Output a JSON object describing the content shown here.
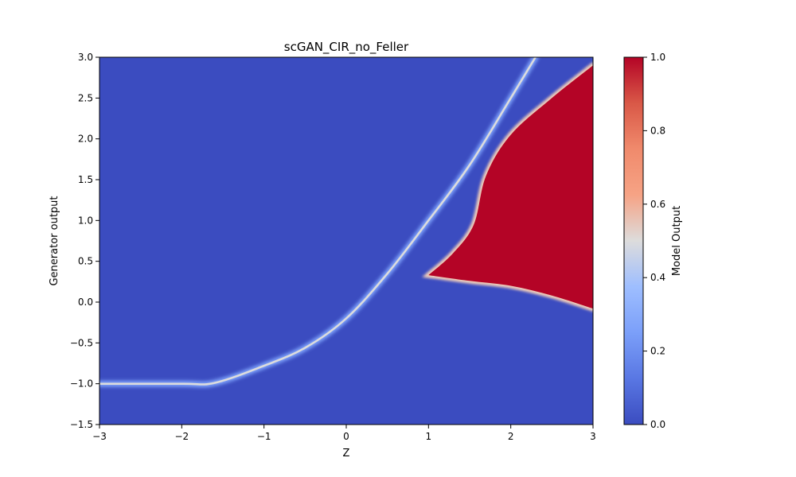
{
  "chart_data": {
    "type": "heatmap",
    "title": "scGAN_CIR_no_Feller",
    "xlabel": "Z",
    "ylabel": "Generator output",
    "xlim": [
      -3,
      3
    ],
    "ylim": [
      -1.5,
      3
    ],
    "x_ticks": [
      -3,
      -2,
      -1,
      0,
      1,
      2,
      3
    ],
    "x_tick_labels": [
      "−3",
      "−2",
      "−1",
      "0",
      "1",
      "2",
      "3"
    ],
    "y_ticks": [
      -1.5,
      -1.0,
      -0.5,
      0.0,
      0.5,
      1.0,
      1.5,
      2.0,
      2.5,
      3.0
    ],
    "y_tick_labels": [
      "−1.5",
      "−1.0",
      "−0.5",
      "0.0",
      "0.5",
      "1.0",
      "1.5",
      "2.0",
      "2.5",
      "3.0"
    ],
    "colormap": "coolwarm",
    "colorbar": {
      "label": "Model Output",
      "range": [
        0,
        1
      ],
      "ticks": [
        0.0,
        0.2,
        0.4,
        0.6,
        0.8,
        1.0
      ],
      "tick_labels": [
        "0.0",
        "0.2",
        "0.4",
        "0.6",
        "0.8",
        "1.0"
      ]
    },
    "background_value": 0.0,
    "ridge": {
      "description_value": 0.4,
      "points": [
        [
          -3,
          -1.0
        ],
        [
          -2,
          -1.0
        ],
        [
          -1.6,
          -0.99
        ],
        [
          -1.0,
          -0.78
        ],
        [
          -0.5,
          -0.56
        ],
        [
          0.0,
          -0.2
        ],
        [
          0.5,
          0.35
        ],
        [
          1.0,
          1.0
        ],
        [
          1.5,
          1.68
        ],
        [
          2.0,
          2.5
        ],
        [
          2.3,
          3.0
        ]
      ]
    },
    "red_region": {
      "value": 1.0,
      "upper_boundary": [
        [
          1.0,
          0.33
        ],
        [
          1.3,
          0.6
        ],
        [
          1.55,
          0.95
        ],
        [
          1.7,
          1.55
        ],
        [
          2.0,
          2.05
        ],
        [
          2.5,
          2.5
        ],
        [
          3.0,
          2.9
        ]
      ],
      "lower_boundary": [
        [
          1.0,
          0.33
        ],
        [
          1.5,
          0.26
        ],
        [
          2.0,
          0.2
        ],
        [
          2.5,
          0.08
        ],
        [
          3.0,
          -0.08
        ]
      ]
    }
  }
}
